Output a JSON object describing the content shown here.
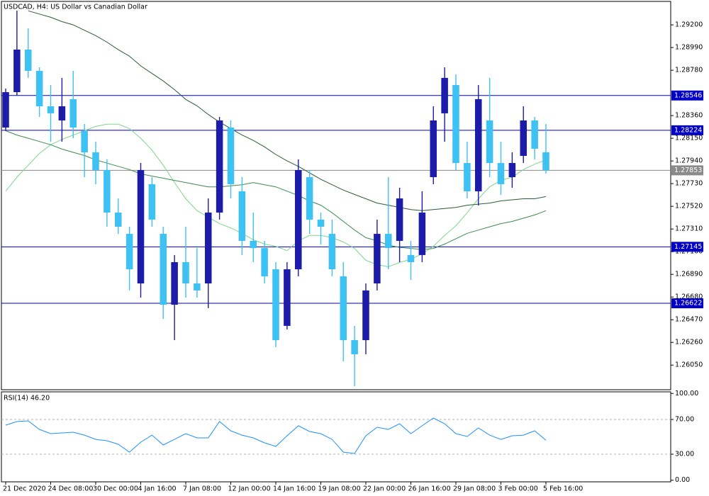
{
  "chart_data": [
    {
      "type": "candlestick",
      "title": "USDCAD, H4:  US Dollar vs Canadian Dollar",
      "up_color": "#1c1ca8",
      "down_color": "#3ec1f3",
      "open": [
        1.28249,
        1.28577,
        1.28971,
        1.28774,
        1.28446,
        1.28315,
        1.28512,
        1.28217,
        1.2802,
        1.27856,
        1.27462,
        1.27265,
        1.26806,
        1.27725,
        1.27265,
        1.26609,
        1.27003,
        1.26806,
        1.26806,
        1.27462,
        1.28249,
        1.27659,
        1.272,
        1.27134,
        1.26937,
        1.26413,
        1.26937,
        1.2779,
        1.27397,
        1.27265,
        1.26872,
        1.26281,
        1.26281,
        1.26806,
        1.27265,
        1.272,
        1.27069,
        1.27069,
        1.2779,
        1.28381,
        1.28643,
        1.27921,
        1.27659,
        1.28315,
        1.27921,
        1.2779,
        1.27987,
        1.28315,
        1.2802
      ],
      "high": [
        1.2861,
        1.29332,
        1.29168,
        1.28807,
        1.28643,
        1.28709,
        1.28774,
        1.28282,
        1.28118,
        1.27954,
        1.27593,
        1.27331,
        1.27921,
        1.2779,
        1.27331,
        1.27069,
        1.27331,
        1.27134,
        1.27593,
        1.28348,
        1.28315,
        1.2779,
        1.27462,
        1.272,
        1.27003,
        1.27003,
        1.27954,
        1.27856,
        1.27462,
        1.27397,
        1.27003,
        1.26413,
        1.26806,
        1.27397,
        1.2779,
        1.27692,
        1.272,
        1.27659,
        1.28446,
        1.28807,
        1.28741,
        1.28118,
        1.28643,
        1.28709,
        1.28118,
        1.2802,
        1.28446,
        1.28348,
        1.28282
      ],
      "low": [
        1.28217,
        1.28545,
        1.28709,
        1.28348,
        1.28118,
        1.28118,
        1.28151,
        1.2779,
        1.27725,
        1.27331,
        1.27265,
        1.26741,
        1.26675,
        1.27331,
        1.26478,
        1.26281,
        1.26675,
        1.26675,
        1.26577,
        1.27397,
        1.27593,
        1.27069,
        1.27003,
        1.26806,
        1.26216,
        1.2638,
        1.26872,
        1.27265,
        1.27167,
        1.26872,
        1.26085,
        1.25855,
        1.2615,
        1.26741,
        1.26937,
        1.27003,
        1.26839,
        1.27003,
        1.27725,
        1.28118,
        1.27856,
        1.27593,
        1.27528,
        1.2779,
        1.27626,
        1.27692,
        1.27921,
        1.27954,
        1.27823
      ],
      "close": [
        1.28577,
        1.28971,
        1.28774,
        1.28446,
        1.28381,
        1.28446,
        1.28249,
        1.2802,
        1.27856,
        1.27462,
        1.27331,
        1.26937,
        1.27856,
        1.27397,
        1.26609,
        1.27003,
        1.26806,
        1.26741,
        1.27462,
        1.28315,
        1.27725,
        1.272,
        1.27134,
        1.26872,
        1.26281,
        1.26937,
        1.27856,
        1.27397,
        1.27331,
        1.26937,
        1.26281,
        1.2615,
        1.26741,
        1.27265,
        1.27134,
        1.27593,
        1.27003,
        1.27462,
        1.28315,
        1.28709,
        1.27921,
        1.27659,
        1.28512,
        1.27921,
        1.27725,
        1.27921,
        1.28315,
        1.28053,
        1.27853
      ],
      "moving_averages": [
        {
          "color": "#7fd68a",
          "values": [
            1.2766,
            1.2779,
            1.279,
            1.2801,
            1.2809,
            1.2814,
            1.2818,
            1.2822,
            1.2826,
            1.2828,
            1.2828,
            1.2824,
            1.2815,
            1.2804,
            1.279,
            1.2774,
            1.2759,
            1.2748,
            1.2742,
            1.2736,
            1.2732,
            1.2727,
            1.2721,
            1.2717,
            1.2715,
            1.2711,
            1.272,
            1.2725,
            1.2725,
            1.2723,
            1.2719,
            1.2713,
            1.2702,
            1.2698,
            1.2696,
            1.27,
            1.2703,
            1.2708,
            1.2715,
            1.2725,
            1.2734,
            1.2746,
            1.2759,
            1.277,
            1.2776,
            1.2779,
            1.2786,
            1.2791,
            1.2795
          ]
        },
        {
          "color": "#3d8b4c",
          "values": [
            1.2822,
            1.2818,
            1.2815,
            1.2812,
            1.2809,
            1.2805,
            1.2802,
            1.2799,
            1.2795,
            1.2792,
            1.2789,
            1.2786,
            1.2782,
            1.278,
            1.2778,
            1.2776,
            1.2774,
            1.2772,
            1.277,
            1.277,
            1.2771,
            1.2772,
            1.2774,
            1.2772,
            1.277,
            1.2766,
            1.2762,
            1.2757,
            1.2753,
            1.2746,
            1.2738,
            1.273,
            1.2723,
            1.272,
            1.2716,
            1.2714,
            1.2713,
            1.2712,
            1.2713,
            1.2717,
            1.2722,
            1.2727,
            1.273,
            1.2733,
            1.2736,
            1.2738,
            1.2741,
            1.2744,
            1.2748
          ]
        },
        {
          "color": "#2a5e34",
          "values": [
            null,
            null,
            1.2933,
            1.293,
            1.2927,
            1.2923,
            1.292,
            1.2915,
            1.291,
            1.2904,
            1.2897,
            1.2891,
            1.2882,
            1.2875,
            1.2868,
            1.286,
            1.2851,
            1.2845,
            1.2837,
            1.283,
            1.2824,
            1.2818,
            1.2813,
            1.2807,
            1.28,
            1.2794,
            1.2789,
            1.2783,
            1.2777,
            1.2772,
            1.2767,
            1.2763,
            1.2759,
            1.2755,
            1.2753,
            1.2751,
            1.2749,
            1.2748,
            1.2749,
            1.275,
            1.2751,
            1.2753,
            1.2754,
            1.2755,
            1.2757,
            1.2758,
            1.2759,
            1.2759,
            1.2761
          ]
        }
      ],
      "hlines": [
        1.28546,
        1.28224,
        1.27145,
        1.26622
      ],
      "hline_color": "#0000c8",
      "last_price": 1.27853,
      "last_price_color": "#8a8a8a",
      "xlim": [
        0,
        48
      ],
      "xticks": [
        {
          "value": 0,
          "label": "21 Dec 2020"
        },
        {
          "value": 4,
          "label": "24 Dec 08:00"
        },
        {
          "value": 8,
          "label": "30 Dec 00:00"
        },
        {
          "value": 12,
          "label": "4 Jan 16:00"
        },
        {
          "value": 16,
          "label": "7 Jan 08:00"
        },
        {
          "value": 20,
          "label": "12 Jan 00:00"
        },
        {
          "value": 24,
          "label": "14 Jan 16:00"
        },
        {
          "value": 28,
          "label": "19 Jan 08:00"
        },
        {
          "value": 32,
          "label": "22 Jan 00:00"
        },
        {
          "value": 36,
          "label": "26 Jan 16:00"
        },
        {
          "value": 40,
          "label": "29 Jan 08:00"
        },
        {
          "value": 44,
          "label": "3 Feb 00:00"
        },
        {
          "value": 48,
          "label": "5 Feb 16:00"
        }
      ],
      "ylim": [
        1.25822,
        1.29417
      ],
      "yticks": [
        {
          "value": 1.292,
          "label": "1.29200"
        },
        {
          "value": 1.2899,
          "label": "1.28990"
        },
        {
          "value": 1.2878,
          "label": "1.28780"
        },
        {
          "value": 1.2836,
          "label": "1.28360"
        },
        {
          "value": 1.2815,
          "label": "1.28150"
        },
        {
          "value": 1.2794,
          "label": "1.27940"
        },
        {
          "value": 1.2773,
          "label": "1.27730"
        },
        {
          "value": 1.2752,
          "label": "1.27520"
        },
        {
          "value": 1.2731,
          "label": "1.27310"
        },
        {
          "value": 1.271,
          "label": "1.27100"
        },
        {
          "value": 1.2689,
          "label": "1.26890"
        },
        {
          "value": 1.2668,
          "label": "1.26680"
        },
        {
          "value": 1.2647,
          "label": "1.26470"
        },
        {
          "value": 1.2626,
          "label": "1.26260"
        },
        {
          "value": 1.2605,
          "label": "1.26050"
        }
      ],
      "grid": false
    },
    {
      "type": "line",
      "title": "RSI(14) 46.20",
      "color": "#1e90ff",
      "values": [
        63.5,
        67.6,
        68.4,
        58.6,
        53.7,
        54.5,
        55.3,
        52.0,
        47.1,
        45.5,
        41.4,
        32.4,
        43.9,
        52.0,
        40.6,
        47.1,
        53.7,
        48.8,
        48.8,
        67.6,
        56.9,
        52.0,
        48.8,
        43.1,
        39.0,
        51.2,
        62.7,
        56.1,
        53.7,
        47.1,
        32.4,
        30.8,
        51.2,
        61.0,
        58.6,
        65.1,
        53.7,
        62.7,
        71.6,
        65.1,
        53.7,
        50.4,
        60.2,
        52.0,
        47.1,
        51.2,
        52.0,
        56.9,
        46.2
      ],
      "levels": [
        70,
        30
      ],
      "level_color": "#b0b0b0",
      "ylim": [
        -1.84,
        101.84
      ],
      "yticks": [
        {
          "value": 100,
          "label": "100.00"
        },
        {
          "value": 70,
          "label": "70.00"
        },
        {
          "value": 30,
          "label": "30.00"
        },
        {
          "value": 0,
          "label": "0.00"
        }
      ],
      "grid": false
    }
  ]
}
